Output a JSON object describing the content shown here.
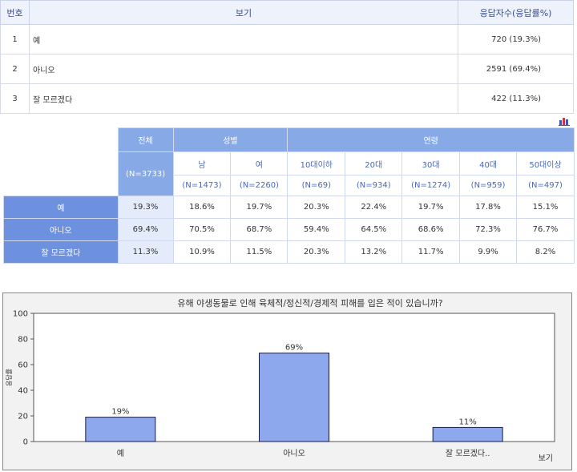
{
  "table1": {
    "headers": {
      "no": "번호",
      "option": "보기",
      "count": "응답자수(응답률%)"
    },
    "rows": [
      {
        "no": "1",
        "label": "예",
        "value": "720 (19.3%)"
      },
      {
        "no": "2",
        "label": "아니오",
        "value": "2591 (69.4%)"
      },
      {
        "no": "3",
        "label": "잘 모르겠다",
        "value": "422 (11.3%)"
      }
    ]
  },
  "toolbar": {
    "chart_icon": "bar-chart-icon"
  },
  "table2": {
    "total_label": "전체",
    "total_n": "(N=3733)",
    "gender_label": "성별",
    "age_label": "연령",
    "gender": [
      {
        "label": "남",
        "n": "(N=1473)"
      },
      {
        "label": "여",
        "n": "(N=2260)"
      }
    ],
    "age": [
      {
        "label": "10대이하",
        "n": "(N=69)"
      },
      {
        "label": "20대",
        "n": "(N=934)"
      },
      {
        "label": "30대",
        "n": "(N=1274)"
      },
      {
        "label": "40대",
        "n": "(N=959)"
      },
      {
        "label": "50대이상",
        "n": "(N=497)"
      }
    ],
    "rows": [
      {
        "label": "예",
        "values": [
          "19.3%",
          "18.6%",
          "19.7%",
          "20.3%",
          "22.4%",
          "19.7%",
          "17.8%",
          "15.1%"
        ]
      },
      {
        "label": "아니오",
        "values": [
          "69.4%",
          "70.5%",
          "68.7%",
          "59.4%",
          "64.5%",
          "68.6%",
          "72.3%",
          "76.7%"
        ]
      },
      {
        "label": "잘 모르겠다",
        "values": [
          "11.3%",
          "10.9%",
          "11.5%",
          "20.3%",
          "13.2%",
          "11.7%",
          "9.9%",
          "8.2%"
        ]
      }
    ]
  },
  "chart_data": {
    "type": "bar",
    "title": "유해 야생동물로 인해 육체적/정신적/경제적 피해를 입은 적이 있습니까?",
    "categories": [
      "예",
      "아니오",
      "잘 모르겠다.."
    ],
    "values": [
      19,
      69,
      11
    ],
    "value_labels": [
      "19%",
      "69%",
      "11%"
    ],
    "xlabel": "보기",
    "ylabel": "응답률",
    "ylim": [
      0,
      100
    ],
    "yticks": [
      0,
      20,
      40,
      60,
      80,
      100
    ],
    "bar_color": "#8ea8ee",
    "bar_edge": "#1a1a4a",
    "grid": false,
    "legend": "none"
  }
}
